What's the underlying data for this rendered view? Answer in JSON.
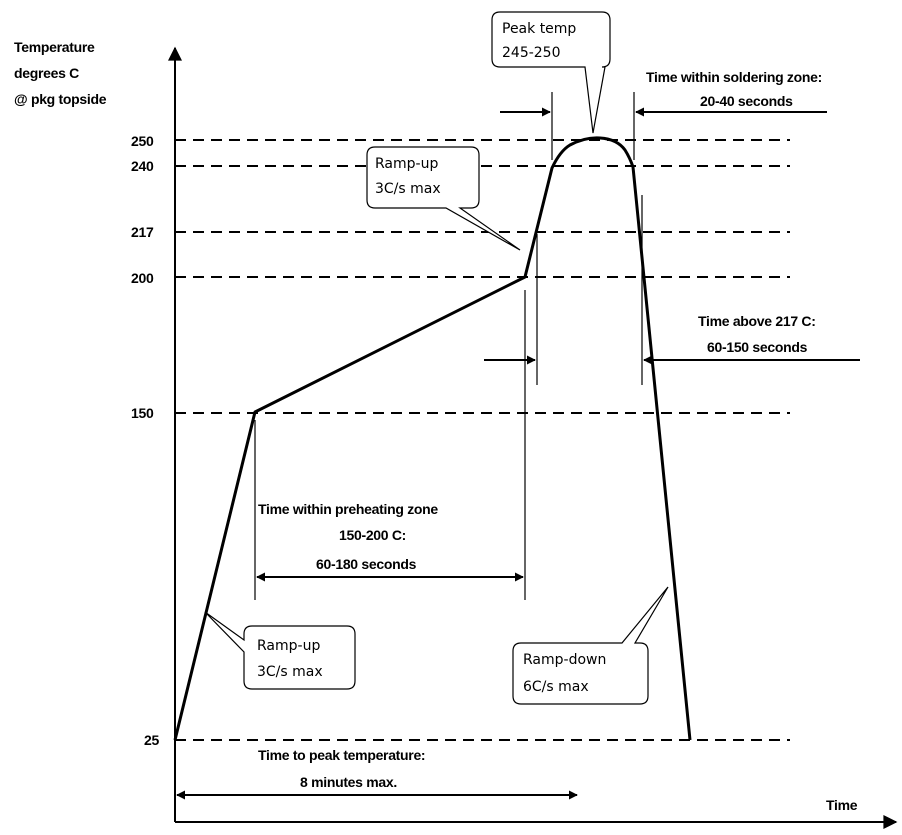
{
  "axes": {
    "y_label": [
      "Temperature",
      "degrees C",
      "@ pkg topside"
    ],
    "x_label": "Time",
    "ticks": [
      "250",
      "240",
      "217",
      "200",
      "150",
      "25"
    ]
  },
  "callouts": {
    "peak": [
      "Peak temp",
      "245-250"
    ],
    "ramp_up_top": [
      "Ramp-up",
      "3C/s max"
    ],
    "ramp_up_bottom": [
      "Ramp-up",
      "3C/s max"
    ],
    "ramp_down": [
      "Ramp-down",
      "6C/s max"
    ]
  },
  "labels": {
    "soldering": [
      "Time within soldering zone:",
      "20-40 seconds"
    ],
    "above_217": [
      "Time above 217 C:",
      "60-150 seconds"
    ],
    "preheat": [
      "Time within preheating zone",
      "150-200 C:",
      "60-180 seconds"
    ],
    "to_peak": [
      "Time to peak temperature:",
      "8 minutes max."
    ]
  }
}
